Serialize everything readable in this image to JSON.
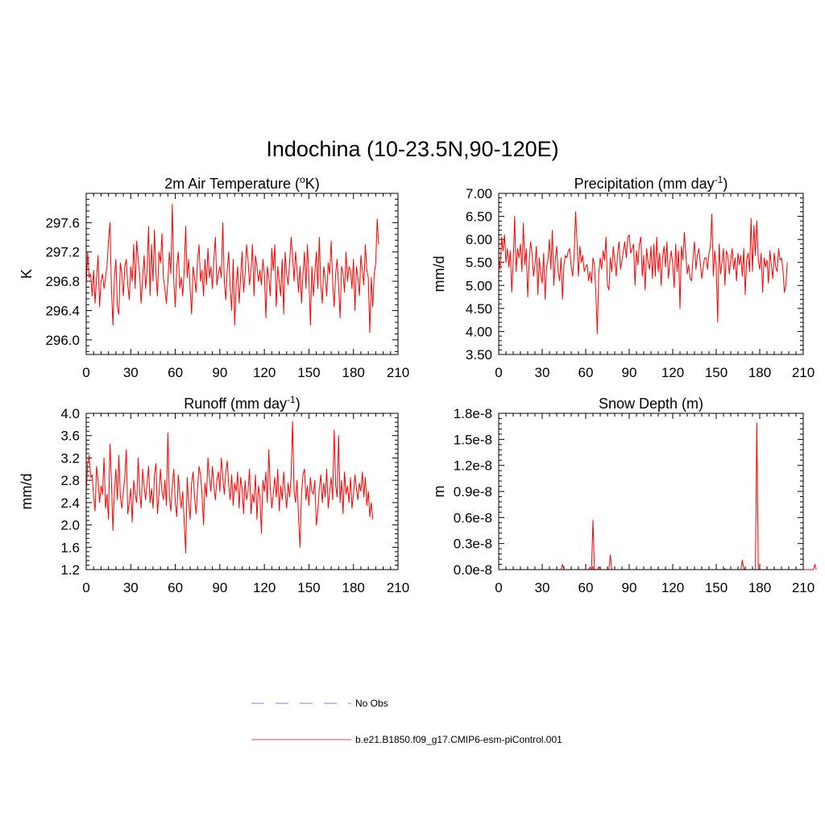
{
  "figure_title": "Indochina (10-23.5N,90-120E)",
  "colors": {
    "model_line": "#ff0000",
    "obs_line": "#9999ff",
    "axes": "#000000"
  },
  "legend": {
    "entries": [
      {
        "label": "No Obs",
        "style": "dashed",
        "color": "#9999ff"
      },
      {
        "label": "b.e21.B1850.f09_g17.CMIP6-esm-piControl.001",
        "style": "solid",
        "color": "#ff6666"
      }
    ]
  },
  "chart_data": [
    {
      "id": "temp",
      "type": "line",
      "title": "2m Air Temperature (",
      "title_sup": "o",
      "title_after": "K)",
      "ylabel": "K",
      "xlim": [
        0,
        210
      ],
      "ylim": [
        295.8,
        298.0
      ],
      "xticks": [
        "0",
        "30",
        "60",
        "90",
        "120",
        "150",
        "180",
        "210"
      ],
      "yticks": [
        "296.0",
        "296.4",
        "296.8",
        "297.2",
        "297.6"
      ],
      "series": [
        {
          "name": "b.e21.B1850.f09_g17.CMIP6-esm-piControl.001",
          "x_start": 0,
          "values": [
            296.75,
            297.2,
            296.85,
            296.9,
            296.6,
            296.95,
            296.5,
            296.85,
            297.15,
            296.45,
            296.8,
            296.9,
            296.7,
            296.85,
            297.0,
            297.35,
            297.6,
            296.7,
            296.2,
            296.85,
            297.1,
            296.45,
            296.35,
            297.05,
            296.9,
            296.6,
            297.0,
            297.1,
            296.75,
            296.55,
            297.0,
            296.8,
            297.3,
            296.7,
            297.35,
            297.1,
            296.9,
            296.5,
            296.85,
            297.15,
            296.7,
            296.95,
            297.55,
            296.6,
            297.3,
            296.8,
            297.5,
            296.9,
            296.6,
            297.2,
            297.05,
            297.45,
            296.85,
            296.7,
            296.5,
            296.8,
            297.2,
            296.9,
            297.85,
            296.8,
            296.45,
            297.0,
            297.2,
            296.7,
            296.85,
            296.6,
            296.95,
            297.55,
            296.85,
            297.1,
            296.7,
            296.35,
            297.0,
            296.85,
            296.65,
            297.1,
            297.3,
            296.8,
            296.95,
            296.6,
            297.1,
            296.75,
            297.25,
            296.85,
            297.0,
            296.7,
            297.1,
            297.4,
            296.75,
            296.9,
            297.0,
            296.85,
            297.6,
            296.8,
            296.55,
            296.95,
            297.2,
            296.7,
            296.4,
            297.1,
            296.2,
            296.75,
            297.0,
            296.5,
            296.85,
            297.2,
            296.65,
            296.9,
            297.3,
            297.1,
            296.75,
            296.95,
            297.3,
            296.6,
            297.15,
            297.0,
            296.8,
            296.95,
            296.75,
            297.1,
            296.9,
            296.3,
            297.0,
            296.85,
            296.6,
            297.25,
            296.95,
            297.3,
            296.45,
            297.0,
            296.8,
            296.6,
            297.1,
            296.35,
            297.2,
            296.9,
            296.75,
            297.05,
            297.4,
            297.15,
            296.8,
            297.2,
            296.95,
            296.65,
            297.0,
            296.5,
            296.9,
            297.2,
            296.7,
            297.3,
            296.85,
            296.2,
            297.0,
            296.6,
            296.9,
            297.2,
            296.7,
            297.4,
            296.75,
            296.5,
            297.0,
            296.85,
            296.6,
            297.05,
            296.9,
            297.35,
            296.8,
            296.45,
            296.9,
            297.1,
            296.75,
            296.3,
            297.0,
            296.9,
            296.65,
            297.2,
            296.8,
            297.0,
            296.95,
            296.7,
            297.1,
            296.4,
            297.0,
            296.85,
            296.6,
            297.15,
            296.95,
            296.75,
            297.3,
            296.95,
            296.85,
            296.1,
            296.85,
            296.45,
            296.9,
            297.05,
            297.65,
            297.3
          ]
        }
      ]
    },
    {
      "id": "prect",
      "type": "line",
      "title": "Precipitation (mm day",
      "title_sup": "-1",
      "title_after": ")",
      "ylabel": "mm/d",
      "xlim": [
        0,
        210
      ],
      "ylim": [
        3.5,
        7.0
      ],
      "xticks": [
        "0",
        "30",
        "60",
        "90",
        "120",
        "150",
        "180",
        "210"
      ],
      "yticks": [
        "3.50",
        "4.00",
        "4.50",
        "5.00",
        "5.50",
        "6.00",
        "6.50",
        "7.00"
      ],
      "series": [
        {
          "name": "b.e21.B1850.f09_g17.CMIP6-esm-piControl.001",
          "x_start": 0,
          "values": [
            5.6,
            5.35,
            6.05,
            5.75,
            6.1,
            5.5,
            5.8,
            5.4,
            5.75,
            4.85,
            5.5,
            6.5,
            5.3,
            5.8,
            5.6,
            5.9,
            5.3,
            6.35,
            5.45,
            5.8,
            4.75,
            5.5,
            5.95,
            5.7,
            5.2,
            5.45,
            5.85,
            4.8,
            5.6,
            5.25,
            5.05,
            5.7,
            4.7,
            5.4,
            5.55,
            6.0,
            5.35,
            6.2,
            5.0,
            5.55,
            5.85,
            5.3,
            5.1,
            5.6,
            4.7,
            5.45,
            5.65,
            5.6,
            5.75,
            5.8,
            5.4,
            5.2,
            5.65,
            6.6,
            5.95,
            5.2,
            5.85,
            5.5,
            5.65,
            5.3,
            5.4,
            5.45,
            5.1,
            5.3,
            5.05,
            5.6,
            5.45,
            4.85,
            3.95,
            5.25,
            5.6,
            5.35,
            5.75,
            5.55,
            6.05,
            5.0,
            4.9,
            5.6,
            5.3,
            5.85,
            5.55,
            5.2,
            5.7,
            5.95,
            5.35,
            5.55,
            5.75,
            5.95,
            5.6,
            6.05,
            6.1,
            5.7,
            5.8,
            5.9,
            5.0,
            5.75,
            5.45,
            5.9,
            6.05,
            5.2,
            5.65,
            4.9,
            5.8,
            5.5,
            5.35,
            5.85,
            5.15,
            5.9,
            5.2,
            6.05,
            5.3,
            5.7,
            5.0,
            5.6,
            5.85,
            5.4,
            5.95,
            5.15,
            5.5,
            5.75,
            5.45,
            4.95,
            5.9,
            5.3,
            5.75,
            4.5,
            5.85,
            5.55,
            6.15,
            5.7,
            5.25,
            5.45,
            5.15,
            5.1,
            5.6,
            5.95,
            5.35,
            5.65,
            5.8,
            5.5,
            5.15,
            5.4,
            5.6,
            5.6,
            5.35,
            5.7,
            5.85,
            6.55,
            5.2,
            5.75,
            5.4,
            4.2,
            5.9,
            5.25,
            5.5,
            5.8,
            5.0,
            5.75,
            5.65,
            5.25,
            5.55,
            5.8,
            5.35,
            5.6,
            5.1,
            5.7,
            5.45,
            5.65,
            5.2,
            5.8,
            4.8,
            5.55,
            5.7,
            5.3,
            6.45,
            5.3,
            6.3,
            5.65,
            6.4,
            5.55,
            5.35,
            5.7,
            4.85,
            5.6,
            5.4,
            5.55,
            5.05,
            5.75,
            5.45,
            5.15,
            5.7,
            5.4,
            5.3,
            5.8,
            5.55,
            5.6,
            5.35,
            4.85,
            5.0,
            5.5
          ]
        }
      ]
    },
    {
      "id": "runoff",
      "type": "line",
      "title": "Runoff (mm day",
      "title_sup": "-1",
      "title_after": ")",
      "ylabel": "mm/d",
      "xlim": [
        0,
        210
      ],
      "ylim": [
        1.2,
        4.0
      ],
      "xticks": [
        "0",
        "30",
        "60",
        "90",
        "120",
        "150",
        "180",
        "210"
      ],
      "yticks": [
        "1.2",
        "1.6",
        "2.0",
        "2.4",
        "2.8",
        "3.2",
        "3.6",
        "4.0"
      ],
      "series": [
        {
          "name": "b.e21.B1850.f09_g17.CMIP6-esm-piControl.001",
          "x_start": 0,
          "values": [
            2.6,
            3.1,
            3.25,
            2.85,
            2.9,
            2.5,
            2.25,
            3.05,
            2.8,
            2.4,
            2.7,
            2.55,
            3.2,
            2.3,
            2.55,
            2.1,
            3.45,
            2.8,
            1.9,
            2.6,
            3.0,
            2.45,
            3.25,
            2.5,
            2.3,
            2.6,
            2.85,
            3.35,
            2.2,
            2.4,
            2.65,
            2.05,
            2.8,
            2.55,
            2.4,
            3.2,
            2.6,
            2.3,
            3.0,
            2.7,
            2.45,
            2.75,
            3.05,
            2.4,
            2.65,
            2.3,
            2.9,
            3.1,
            2.2,
            2.55,
            3.0,
            2.6,
            2.45,
            2.8,
            2.35,
            3.65,
            2.5,
            2.25,
            2.7,
            3.0,
            2.4,
            2.15,
            2.9,
            2.55,
            2.3,
            2.6,
            2.05,
            1.5,
            2.85,
            2.4,
            2.1,
            2.75,
            2.95,
            2.5,
            2.2,
            2.65,
            3.05,
            2.9,
            2.55,
            2.0,
            2.75,
            2.5,
            3.2,
            2.85,
            2.6,
            3.05,
            2.7,
            2.45,
            2.8,
            2.95,
            2.6,
            3.2,
            2.85,
            2.55,
            2.95,
            3.15,
            2.7,
            2.45,
            2.9,
            2.35,
            2.75,
            2.6,
            2.95,
            2.3,
            2.85,
            2.65,
            2.2,
            2.8,
            2.45,
            2.6,
            3.0,
            2.2,
            2.55,
            2.4,
            2.9,
            2.1,
            2.7,
            2.5,
            1.85,
            2.8,
            2.6,
            2.95,
            2.4,
            3.35,
            2.65,
            2.3,
            2.55,
            2.85,
            2.5,
            3.0,
            2.25,
            2.7,
            2.45,
            2.95,
            2.6,
            2.3,
            2.75,
            2.5,
            2.85,
            3.85,
            2.6,
            2.4,
            2.8,
            2.15,
            1.6,
            2.55,
            2.9,
            3.0,
            2.45,
            2.7,
            2.35,
            2.85,
            2.6,
            2.55,
            2.8,
            2.0,
            2.25,
            2.65,
            2.9,
            2.4,
            2.75,
            2.5,
            3.0,
            2.3,
            2.6,
            2.85,
            2.45,
            3.7,
            2.7,
            2.5,
            3.6,
            2.4,
            2.8,
            2.2,
            2.95,
            2.55,
            2.7,
            2.4,
            2.85,
            2.3,
            2.55,
            2.9,
            2.65,
            2.45,
            2.75,
            2.6,
            2.95,
            2.5,
            2.85,
            2.35,
            2.6,
            2.15,
            2.4,
            2.1
          ]
        }
      ]
    },
    {
      "id": "snow",
      "type": "line",
      "title": "Snow Depth (m)",
      "title_sup": "",
      "title_after": "",
      "ylabel": "m",
      "xlim": [
        0,
        210
      ],
      "ylim": [
        0.0,
        1.8e-08
      ],
      "xticks": [
        "0",
        "30",
        "60",
        "90",
        "120",
        "150",
        "180",
        "210"
      ],
      "yticks": [
        "0.0e-8",
        "0.3e-8",
        "0.6e-8",
        "0.9e-8",
        "1.2e-8",
        "1.5e-8",
        "1.8e-8"
      ],
      "series": [
        {
          "name": "b.e21.B1850.f09_g17.CMIP6-esm-piControl.001",
          "x_start": 0,
          "values": [
            0,
            0,
            0,
            0,
            0,
            0,
            0,
            0,
            0,
            0,
            0,
            0,
            0,
            0,
            0,
            0,
            0,
            0,
            0,
            0,
            0,
            0,
            0,
            0,
            0,
            0,
            0,
            0,
            0,
            0,
            0,
            0,
            0,
            0,
            0,
            0,
            0,
            0,
            0,
            0,
            0,
            0,
            0,
            0,
            6e-10,
            0,
            0,
            0,
            0,
            0,
            0,
            0,
            0,
            0,
            0,
            0,
            0,
            0,
            0,
            0,
            0,
            0,
            0,
            3e-10,
            0,
            5.7e-09,
            1e-10,
            0,
            0,
            3e-10,
            0,
            0,
            0,
            0,
            0,
            0,
            0,
            1.7e-09,
            0,
            0,
            0,
            0,
            0,
            0,
            0,
            0,
            0,
            0,
            0,
            0,
            0,
            0,
            0,
            0,
            0,
            0,
            0,
            0,
            0,
            0,
            0,
            0,
            0,
            0,
            0,
            0,
            0,
            0,
            0,
            0,
            0,
            0,
            0,
            0,
            0,
            0,
            0,
            0,
            0,
            0,
            0,
            0,
            0,
            0,
            0,
            0,
            0,
            0,
            0,
            0,
            0,
            0,
            0,
            0,
            0,
            0,
            0,
            0,
            0,
            0,
            0,
            0,
            0,
            0,
            0,
            0,
            0,
            0,
            0,
            0,
            0,
            0,
            0,
            0,
            0,
            0,
            1e-10,
            0,
            0,
            0,
            0,
            0,
            0,
            0,
            0,
            0,
            0,
            0,
            1.1e-09,
            1e-10,
            0,
            0,
            0,
            0,
            0,
            0,
            0,
            0,
            1.69e-08,
            0,
            0,
            0,
            0,
            0,
            0,
            0,
            0,
            0,
            0,
            0,
            0,
            0,
            0,
            0,
            0,
            0,
            0,
            0,
            0,
            0,
            0,
            0,
            0,
            0,
            0,
            0,
            0,
            0,
            0,
            0,
            0,
            0,
            0,
            0,
            0,
            0,
            0,
            0,
            6e-10,
            0
          ]
        }
      ]
    }
  ]
}
